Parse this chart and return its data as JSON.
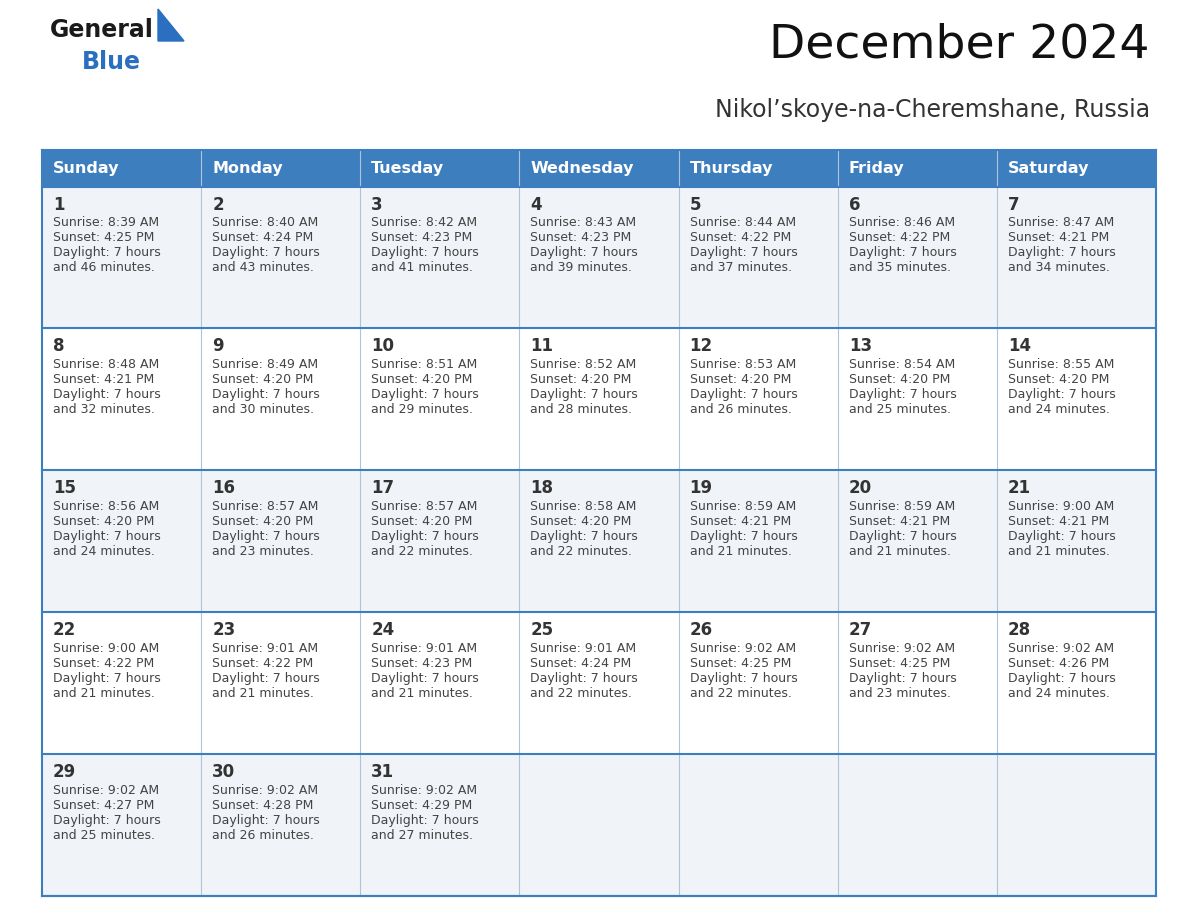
{
  "title": "December 2024",
  "subtitle": "Nikol’skoye-na-Cheremshane, Russia",
  "header_bg": "#3d7ebf",
  "header_text": "#ffffff",
  "row_bg_odd": "#f0f4f8",
  "row_bg_even": "#ffffff",
  "border_color": "#3d7ebf",
  "divider_color": "#b0c4d8",
  "text_color": "#333333",
  "cell_text_color": "#444444",
  "days_of_week": [
    "Sunday",
    "Monday",
    "Tuesday",
    "Wednesday",
    "Thursday",
    "Friday",
    "Saturday"
  ],
  "calendar": [
    [
      {
        "day": 1,
        "sunrise": "8:39 AM",
        "sunset": "4:25 PM",
        "daylight": "7 hours and 46 minutes."
      },
      {
        "day": 2,
        "sunrise": "8:40 AM",
        "sunset": "4:24 PM",
        "daylight": "7 hours and 43 minutes."
      },
      {
        "day": 3,
        "sunrise": "8:42 AM",
        "sunset": "4:23 PM",
        "daylight": "7 hours and 41 minutes."
      },
      {
        "day": 4,
        "sunrise": "8:43 AM",
        "sunset": "4:23 PM",
        "daylight": "7 hours and 39 minutes."
      },
      {
        "day": 5,
        "sunrise": "8:44 AM",
        "sunset": "4:22 PM",
        "daylight": "7 hours and 37 minutes."
      },
      {
        "day": 6,
        "sunrise": "8:46 AM",
        "sunset": "4:22 PM",
        "daylight": "7 hours and 35 minutes."
      },
      {
        "day": 7,
        "sunrise": "8:47 AM",
        "sunset": "4:21 PM",
        "daylight": "7 hours and 34 minutes."
      }
    ],
    [
      {
        "day": 8,
        "sunrise": "8:48 AM",
        "sunset": "4:21 PM",
        "daylight": "7 hours and 32 minutes."
      },
      {
        "day": 9,
        "sunrise": "8:49 AM",
        "sunset": "4:20 PM",
        "daylight": "7 hours and 30 minutes."
      },
      {
        "day": 10,
        "sunrise": "8:51 AM",
        "sunset": "4:20 PM",
        "daylight": "7 hours and 29 minutes."
      },
      {
        "day": 11,
        "sunrise": "8:52 AM",
        "sunset": "4:20 PM",
        "daylight": "7 hours and 28 minutes."
      },
      {
        "day": 12,
        "sunrise": "8:53 AM",
        "sunset": "4:20 PM",
        "daylight": "7 hours and 26 minutes."
      },
      {
        "day": 13,
        "sunrise": "8:54 AM",
        "sunset": "4:20 PM",
        "daylight": "7 hours and 25 minutes."
      },
      {
        "day": 14,
        "sunrise": "8:55 AM",
        "sunset": "4:20 PM",
        "daylight": "7 hours and 24 minutes."
      }
    ],
    [
      {
        "day": 15,
        "sunrise": "8:56 AM",
        "sunset": "4:20 PM",
        "daylight": "7 hours and 24 minutes."
      },
      {
        "day": 16,
        "sunrise": "8:57 AM",
        "sunset": "4:20 PM",
        "daylight": "7 hours and 23 minutes."
      },
      {
        "day": 17,
        "sunrise": "8:57 AM",
        "sunset": "4:20 PM",
        "daylight": "7 hours and 22 minutes."
      },
      {
        "day": 18,
        "sunrise": "8:58 AM",
        "sunset": "4:20 PM",
        "daylight": "7 hours and 22 minutes."
      },
      {
        "day": 19,
        "sunrise": "8:59 AM",
        "sunset": "4:21 PM",
        "daylight": "7 hours and 21 minutes."
      },
      {
        "day": 20,
        "sunrise": "8:59 AM",
        "sunset": "4:21 PM",
        "daylight": "7 hours and 21 minutes."
      },
      {
        "day": 21,
        "sunrise": "9:00 AM",
        "sunset": "4:21 PM",
        "daylight": "7 hours and 21 minutes."
      }
    ],
    [
      {
        "day": 22,
        "sunrise": "9:00 AM",
        "sunset": "4:22 PM",
        "daylight": "7 hours and 21 minutes."
      },
      {
        "day": 23,
        "sunrise": "9:01 AM",
        "sunset": "4:22 PM",
        "daylight": "7 hours and 21 minutes."
      },
      {
        "day": 24,
        "sunrise": "9:01 AM",
        "sunset": "4:23 PM",
        "daylight": "7 hours and 21 minutes."
      },
      {
        "day": 25,
        "sunrise": "9:01 AM",
        "sunset": "4:24 PM",
        "daylight": "7 hours and 22 minutes."
      },
      {
        "day": 26,
        "sunrise": "9:02 AM",
        "sunset": "4:25 PM",
        "daylight": "7 hours and 22 minutes."
      },
      {
        "day": 27,
        "sunrise": "9:02 AM",
        "sunset": "4:25 PM",
        "daylight": "7 hours and 23 minutes."
      },
      {
        "day": 28,
        "sunrise": "9:02 AM",
        "sunset": "4:26 PM",
        "daylight": "7 hours and 24 minutes."
      }
    ],
    [
      {
        "day": 29,
        "sunrise": "9:02 AM",
        "sunset": "4:27 PM",
        "daylight": "7 hours and 25 minutes."
      },
      {
        "day": 30,
        "sunrise": "9:02 AM",
        "sunset": "4:28 PM",
        "daylight": "7 hours and 26 minutes."
      },
      {
        "day": 31,
        "sunrise": "9:02 AM",
        "sunset": "4:29 PM",
        "daylight": "7 hours and 27 minutes."
      },
      null,
      null,
      null,
      null
    ]
  ],
  "logo_general_color": "#1a1a1a",
  "logo_blue_color": "#2a6fc0",
  "logo_triangle_color": "#2a6fc0",
  "title_fontsize": 34,
  "subtitle_fontsize": 17,
  "header_fontsize": 11.5,
  "day_num_fontsize": 12,
  "cell_fontsize": 9.0
}
